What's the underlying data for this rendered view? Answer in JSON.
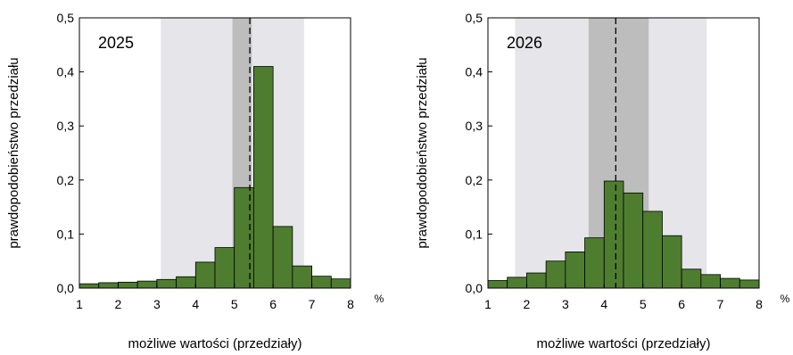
{
  "chart_data": [
    {
      "type": "bar",
      "label": "2025",
      "xlabel": "możliwe wartości (przedziały)",
      "ylabel": "prawdopodobieństwo przedziału",
      "unit": "%",
      "xlim": [
        1,
        8
      ],
      "ylim": [
        0,
        0.5
      ],
      "x_ticks": [
        "1",
        "2",
        "3",
        "4",
        "5",
        "6",
        "7",
        "8"
      ],
      "y_ticks": [
        "0,0",
        "0,1",
        "0,2",
        "0,3",
        "0,4",
        "0,5"
      ],
      "bins": [
        {
          "from": 1.0,
          "to": 1.5,
          "value": 0.008
        },
        {
          "from": 1.5,
          "to": 2.0,
          "value": 0.01
        },
        {
          "from": 2.0,
          "to": 2.5,
          "value": 0.011
        },
        {
          "from": 2.5,
          "to": 3.0,
          "value": 0.013
        },
        {
          "from": 3.0,
          "to": 3.5,
          "value": 0.016
        },
        {
          "from": 3.5,
          "to": 4.0,
          "value": 0.021
        },
        {
          "from": 4.0,
          "to": 4.5,
          "value": 0.048
        },
        {
          "from": 4.5,
          "to": 5.0,
          "value": 0.075
        },
        {
          "from": 5.0,
          "to": 5.5,
          "value": 0.186
        },
        {
          "from": 5.5,
          "to": 6.0,
          "value": 0.41
        },
        {
          "from": 6.0,
          "to": 6.5,
          "value": 0.114
        },
        {
          "from": 6.5,
          "to": 7.0,
          "value": 0.041
        },
        {
          "from": 7.0,
          "to": 7.5,
          "value": 0.022
        },
        {
          "from": 7.5,
          "to": 8.0,
          "value": 0.017
        }
      ],
      "bins_note_ignore": "",
      "outer_band": [
        3.1,
        6.8
      ],
      "inner_band": [
        4.95,
        5.45
      ],
      "central_line": 5.4,
      "colors": {
        "bar": "#4e7d2f",
        "outer_band": "#e6e6ea",
        "inner_band": "#bdbdbd"
      }
    },
    {
      "type": "bar",
      "label": "2026",
      "xlabel": "możliwe wartości (przedziały)",
      "ylabel": "prawdopodobieństwo przedziału",
      "unit": "%",
      "xlim": [
        1,
        8
      ],
      "ylim": [
        0,
        0.5
      ],
      "x_ticks": [
        "1",
        "2",
        "3",
        "4",
        "5",
        "6",
        "7",
        "8"
      ],
      "y_ticks": [
        "0,0",
        "0,1",
        "0,2",
        "0,3",
        "0,4",
        "0,5"
      ],
      "bins": [
        {
          "from": 1.0,
          "to": 1.5,
          "value": 0.014
        },
        {
          "from": 1.5,
          "to": 2.0,
          "value": 0.02
        },
        {
          "from": 2.0,
          "to": 2.5,
          "value": 0.028
        },
        {
          "from": 2.5,
          "to": 3.0,
          "value": 0.05
        },
        {
          "from": 3.0,
          "to": 3.5,
          "value": 0.067
        },
        {
          "from": 3.5,
          "to": 4.0,
          "value": 0.093
        },
        {
          "from": 4.0,
          "to": 4.5,
          "value": 0.198
        },
        {
          "from": 4.5,
          "to": 5.0,
          "value": 0.176
        },
        {
          "from": 5.0,
          "to": 5.5,
          "value": 0.142
        },
        {
          "from": 5.5,
          "to": 6.0,
          "value": 0.097
        },
        {
          "from": 6.0,
          "to": 6.5,
          "value": 0.035
        },
        {
          "from": 6.5,
          "to": 7.0,
          "value": 0.025
        },
        {
          "from": 7.0,
          "to": 7.5,
          "value": 0.018
        },
        {
          "from": 7.5,
          "to": 8.0,
          "value": 0.015
        }
      ],
      "outer_band": [
        1.7,
        6.65
      ],
      "inner_band": [
        3.6,
        5.15
      ],
      "central_line": 4.3,
      "colors": {
        "bar": "#4e7d2f",
        "outer_band": "#e6e6ea",
        "inner_band": "#bdbdbd"
      }
    }
  ]
}
